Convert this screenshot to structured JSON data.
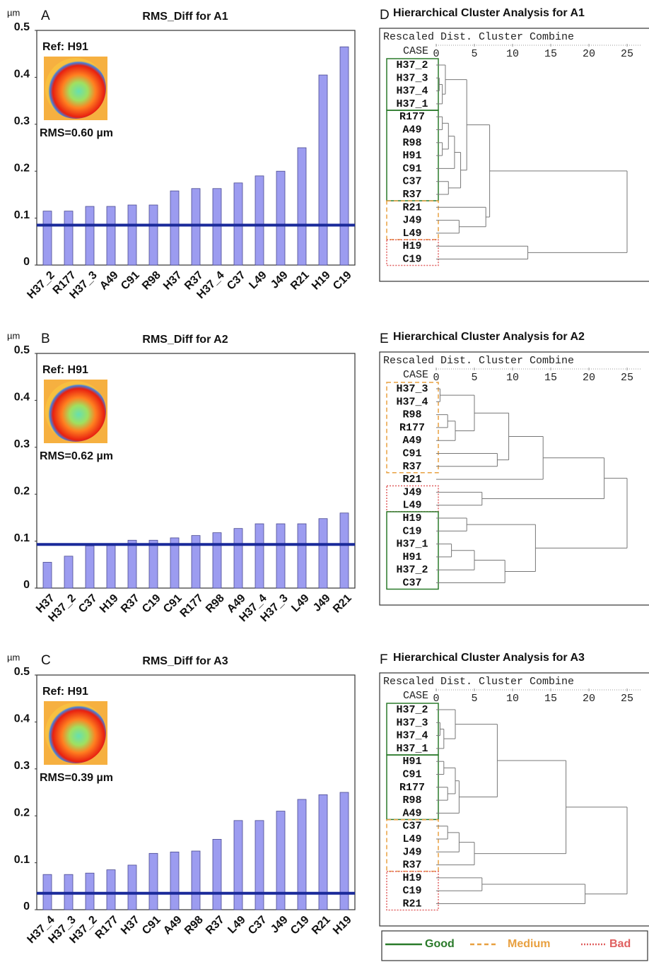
{
  "chart_data": [
    {
      "type": "bar",
      "panel": "A",
      "unit": "µm",
      "title": "RMS_Diff for A1",
      "reference": "Ref: H91",
      "rms": "RMS=0.60 µm",
      "categories": [
        "H37_2",
        "R177",
        "H37_3",
        "A49",
        "C91",
        "R98",
        "H37",
        "R37",
        "H37_4",
        "C37",
        "L49",
        "J49",
        "R21",
        "H19",
        "C19"
      ],
      "values": [
        0.115,
        0.115,
        0.125,
        0.125,
        0.128,
        0.128,
        0.158,
        0.163,
        0.163,
        0.175,
        0.19,
        0.2,
        0.25,
        0.405,
        0.465
      ],
      "color": "#9c9cf0",
      "threshold": 0.085,
      "threshold_color": "#1a2a9a",
      "ylim": [
        0,
        0.5
      ],
      "yticks": [
        0,
        0.1,
        0.2,
        0.3,
        0.4,
        0.5
      ]
    },
    {
      "type": "bar",
      "panel": "B",
      "unit": "µm",
      "title": "RMS_Diff for A2",
      "reference": "Ref: H91",
      "rms": "RMS=0.62 µm",
      "categories": [
        "H37",
        "H37_2",
        "C37",
        "H19",
        "R37",
        "C19",
        "C91",
        "R177",
        "R98",
        "A49",
        "H37_4",
        "H37_3",
        "L49",
        "J49",
        "R21"
      ],
      "values": [
        0.055,
        0.068,
        0.09,
        0.092,
        0.102,
        0.102,
        0.107,
        0.112,
        0.118,
        0.127,
        0.137,
        0.137,
        0.137,
        0.148,
        0.16
      ],
      "color": "#9c9cf0",
      "threshold": 0.093,
      "threshold_color": "#1a2a9a",
      "ylim": [
        0,
        0.5
      ],
      "yticks": [
        0,
        0.1,
        0.2,
        0.3,
        0.4,
        0.5
      ]
    },
    {
      "type": "bar",
      "panel": "C",
      "unit": "µm",
      "title": "RMS_Diff for A3",
      "reference": "Ref: H91",
      "rms": "RMS=0.39 µm",
      "categories": [
        "H37_4",
        "H37_3",
        "H37_2",
        "R177",
        "H37",
        "C91",
        "A49",
        "R98",
        "R37",
        "L49",
        "C37",
        "J49",
        "C19",
        "R21",
        "H19"
      ],
      "values": [
        0.075,
        0.075,
        0.078,
        0.085,
        0.095,
        0.12,
        0.123,
        0.125,
        0.15,
        0.19,
        0.19,
        0.21,
        0.235,
        0.245,
        0.25
      ],
      "color": "#9c9cf0",
      "threshold": 0.035,
      "threshold_color": "#1a2a9a",
      "ylim": [
        0,
        0.5
      ],
      "yticks": [
        0,
        0.1,
        0.2,
        0.3,
        0.4,
        0.5
      ]
    },
    {
      "type": "dendrogram",
      "panel": "D",
      "title": "Hierarchical Cluster Analysis for A1",
      "header": "Rescaled Dist. Cluster Combine",
      "case_label": "CASE",
      "cases": [
        "H37_2",
        "H37_3",
        "H37_4",
        "H37_1",
        "R177",
        "A49",
        "R98",
        "H91",
        "C91",
        "C37",
        "R37",
        "R21",
        "J49",
        "L49",
        "H19",
        "C19"
      ],
      "merges": [
        [
          1,
          2,
          0.4
        ],
        [
          16,
          3,
          0.8
        ],
        [
          0,
          17,
          1.2
        ],
        [
          4,
          5,
          0.8
        ],
        [
          6,
          7,
          0.8
        ],
        [
          19,
          20,
          1.6
        ],
        [
          21,
          8,
          2.4
        ],
        [
          9,
          10,
          1.6
        ],
        [
          22,
          23,
          3.2
        ],
        [
          12,
          13,
          3
        ],
        [
          18,
          24,
          4
        ],
        [
          11,
          25,
          6.5
        ],
        [
          26,
          27,
          7
        ],
        [
          14,
          15,
          12
        ],
        [
          28,
          29,
          25
        ]
      ],
      "xlim": [
        0,
        25
      ],
      "xticks": [
        0,
        5,
        10,
        15,
        20,
        25
      ],
      "groups": [
        {
          "first": 0,
          "last": 3,
          "color": "#2a7a2a",
          "dash": "solid"
        },
        {
          "first": 4,
          "last": 10,
          "color": "#2a7a2a",
          "dash": "solid"
        },
        {
          "first": 11,
          "last": 13,
          "color": "#e8a040",
          "dash": "dashed"
        },
        {
          "first": 14,
          "last": 15,
          "color": "#e06060",
          "dash": "dotted"
        }
      ]
    },
    {
      "type": "dendrogram",
      "panel": "E",
      "title": "Hierarchical Cluster Analysis for A2",
      "header": "Rescaled Dist. Cluster Combine",
      "case_label": "CASE",
      "cases": [
        "H37_3",
        "H37_4",
        "R98",
        "R177",
        "A49",
        "C91",
        "R37",
        "R21",
        "J49",
        "L49",
        "H19",
        "C19",
        "H37_1",
        "H91",
        "H37_2",
        "C37"
      ],
      "merges": [
        [
          0,
          1,
          0.5
        ],
        [
          2,
          3,
          1.5
        ],
        [
          17,
          4,
          2.5
        ],
        [
          16,
          18,
          5
        ],
        [
          5,
          6,
          8
        ],
        [
          19,
          20,
          9.5
        ],
        [
          8,
          9,
          6
        ],
        [
          21,
          7,
          14
        ],
        [
          23,
          22,
          22
        ],
        [
          10,
          11,
          4
        ],
        [
          12,
          13,
          2
        ],
        [
          26,
          14,
          5
        ],
        [
          27,
          15,
          9
        ],
        [
          25,
          28,
          13
        ],
        [
          24,
          29,
          25
        ]
      ],
      "xlim": [
        0,
        25
      ],
      "xticks": [
        0,
        5,
        10,
        15,
        20,
        25
      ],
      "groups": [
        {
          "first": 0,
          "last": 6,
          "color": "#e8a040",
          "dash": "dashed"
        },
        {
          "first": 8,
          "last": 9,
          "color": "#e06060",
          "dash": "dotted"
        },
        {
          "first": 10,
          "last": 15,
          "color": "#2a7a2a",
          "dash": "solid"
        }
      ]
    },
    {
      "type": "dendrogram",
      "panel": "F",
      "title": "Hierarchical Cluster Analysis for A3",
      "header": "Rescaled Dist. Cluster Combine",
      "case_label": "CASE",
      "cases": [
        "H37_2",
        "H37_3",
        "H37_4",
        "H37_1",
        "H91",
        "C91",
        "R177",
        "R98",
        "A49",
        "C37",
        "L49",
        "J49",
        "R37",
        "H19",
        "C19",
        "R21"
      ],
      "merges": [
        [
          1,
          2,
          0.5
        ],
        [
          16,
          3,
          1
        ],
        [
          0,
          17,
          2.5
        ],
        [
          4,
          5,
          1
        ],
        [
          6,
          7,
          1.5
        ],
        [
          19,
          20,
          2.5
        ],
        [
          21,
          8,
          3
        ],
        [
          18,
          22,
          8
        ],
        [
          9,
          10,
          1.5
        ],
        [
          24,
          11,
          3
        ],
        [
          25,
          12,
          5
        ],
        [
          23,
          26,
          17
        ],
        [
          13,
          14,
          6
        ],
        [
          28,
          15,
          19.5
        ],
        [
          27,
          29,
          25
        ]
      ],
      "xlim": [
        0,
        25
      ],
      "xticks": [
        0,
        5,
        10,
        15,
        20,
        25
      ],
      "groups": [
        {
          "first": 0,
          "last": 3,
          "color": "#2a7a2a",
          "dash": "solid"
        },
        {
          "first": 4,
          "last": 8,
          "color": "#2a7a2a",
          "dash": "solid"
        },
        {
          "first": 9,
          "last": 12,
          "color": "#e8a040",
          "dash": "dashed"
        },
        {
          "first": 13,
          "last": 15,
          "color": "#e06060",
          "dash": "dotted"
        }
      ]
    }
  ],
  "legend": [
    {
      "name": "Good",
      "color": "#2a7a2a",
      "dash": "solid"
    },
    {
      "name": "Medium",
      "color": "#e8a040",
      "dash": "dashed"
    },
    {
      "name": "Bad",
      "color": "#e06060",
      "dash": "dotted"
    }
  ]
}
